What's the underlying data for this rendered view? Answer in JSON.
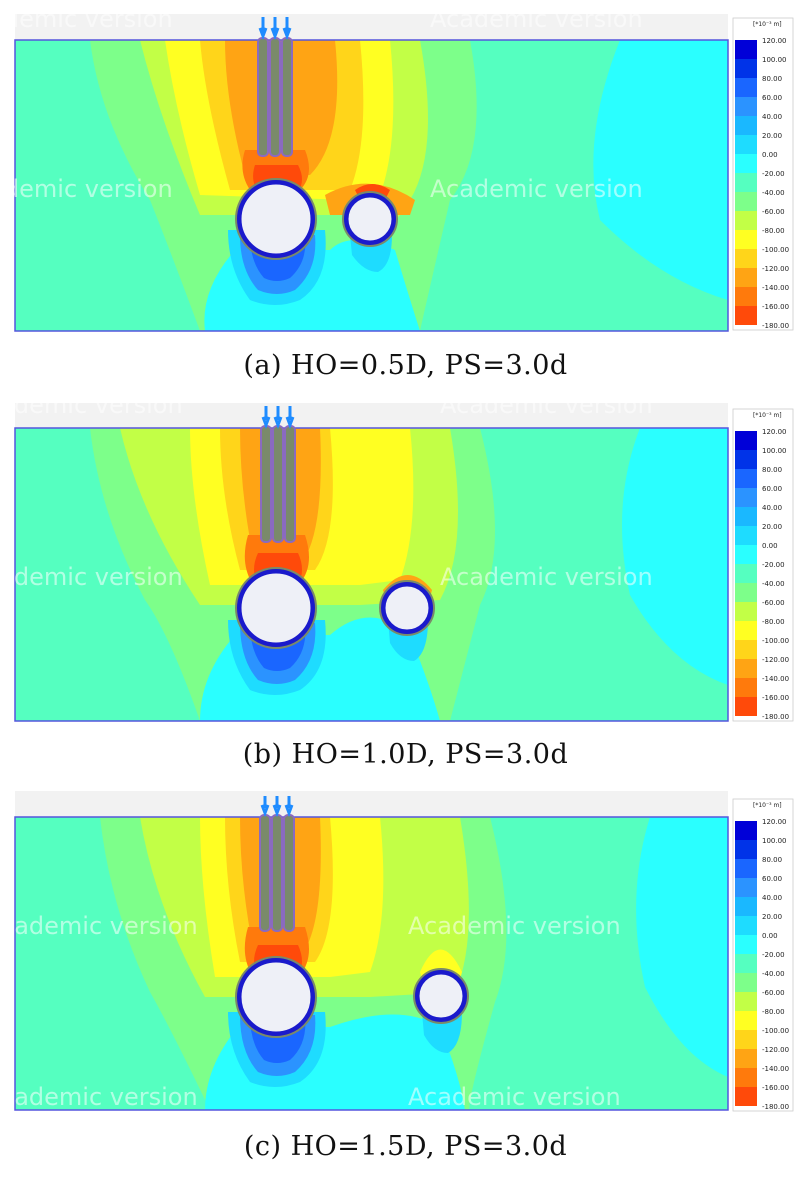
{
  "colors": {
    "c120": "#0000d8",
    "c100": "#0033e8",
    "c80": "#1a66ff",
    "c60": "#2b93ff",
    "c40": "#1ab8ff",
    "c20": "#1edcff",
    "c0": "#2affff",
    "cm20": "#55ffc0",
    "cm40": "#7dff8a",
    "cm60": "#c2ff46",
    "cm80": "#ffff22",
    "cm100": "#ffd51a",
    "cm120": "#ffa414",
    "cm140": "#ff7a0c",
    "cm160": "#ff4a0a",
    "cm180": "#ff1212",
    "tunnel_fill": "#eef0f7",
    "tunnel_ring": "#1a1acc",
    "pile": "#7a8a6a",
    "arrow": "#1f8cff"
  },
  "legend": {
    "unit": "[*10⁻³ m]",
    "ticks": [
      "120.00",
      "100.00",
      "80.00",
      "60.00",
      "40.00",
      "20.00",
      "0.00",
      "-20.00",
      "-40.00",
      "-60.00",
      "-80.00",
      "-100.00",
      "-120.00",
      "-140.00",
      "-160.00",
      "-180.00"
    ]
  },
  "watermark": "Academic version",
  "panels": [
    {
      "id": "a",
      "caption": "(a) HO=0.5D, PS=3.0d",
      "small_tunnel_x": 370,
      "small_tunnel_y": 219
    },
    {
      "id": "b",
      "caption": "(b) HO=1.0D, PS=3.0d",
      "small_tunnel_x": 407,
      "small_tunnel_y": 608
    },
    {
      "id": "c",
      "caption": "(c) HO=1.5D, PS=3.0d",
      "small_tunnel_x": 441,
      "small_tunnel_y": 996
    }
  ]
}
